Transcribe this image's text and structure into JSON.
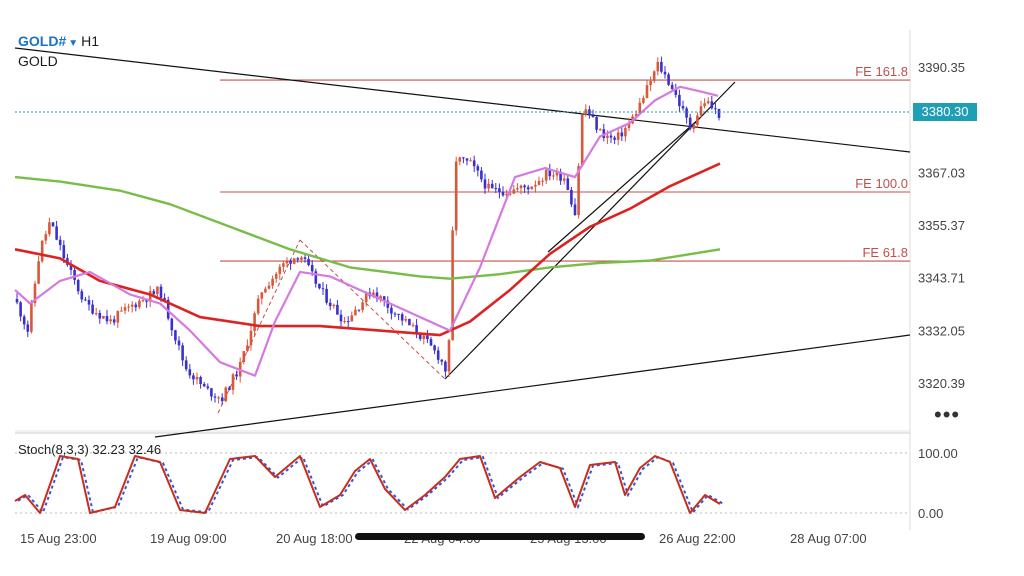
{
  "header": {
    "symbol": "GOLD#",
    "timeframe": "H1",
    "name": "GOLD"
  },
  "price_axis": {
    "labels": [
      "3390.35",
      "3367.03",
      "3355.37",
      "3343.71",
      "3332.05",
      "3320.39"
    ],
    "current_price": "3380.30",
    "current_price_color": "#1f9fb5"
  },
  "time_axis": {
    "labels": [
      "15 Aug 23:00",
      "19 Aug 09:00",
      "20 Aug 18:00",
      "22 Aug 04:00",
      "25 Aug 13:00",
      "26 Aug 22:00",
      "28 Aug 07:00"
    ]
  },
  "fib_levels": [
    {
      "label": "FE 161.8",
      "price": 3387.5
    },
    {
      "label": "FE 100.0",
      "price": 3362.7
    },
    {
      "label": "FE 61.8",
      "price": 3347.4
    }
  ],
  "stochastic": {
    "label": "Stoch(8,3,3) 32.23 32.46",
    "levels": [
      "100.00",
      "0.00"
    ]
  },
  "more_icon": "more-dots-icon",
  "colors": {
    "bull": "#d9573a",
    "bear": "#3a2fd0",
    "ma_fast": "#d67ae0",
    "ma_mid": "#dd2222",
    "ma_slow": "#78bd48",
    "fib": "#c0504d",
    "trendline": "#111111",
    "stoch_main": "#c62f1d",
    "stoch_signal": "#3157d8"
  },
  "chart_data": {
    "type": "candlestick",
    "symbol": "GOLD#",
    "timeframe": "H1",
    "price_ylim": [
      3312,
      3400
    ],
    "stoch_ylim": [
      0,
      100
    ],
    "key_closes": [
      {
        "time": "15 Aug 23:00",
        "price": 3339
      },
      {
        "time": "19 Aug 09:00",
        "price": 3318
      },
      {
        "time": "20 Aug 18:00",
        "price": 3349
      },
      {
        "time": "22 Aug 04:00",
        "price": 3322
      },
      {
        "time": "22 Aug 04:00",
        "price": 3371
      },
      {
        "time": "25 Aug 13:00",
        "price": 3364
      },
      {
        "time": "26 Aug 22:00",
        "price": 3380.3
      }
    ]
  }
}
